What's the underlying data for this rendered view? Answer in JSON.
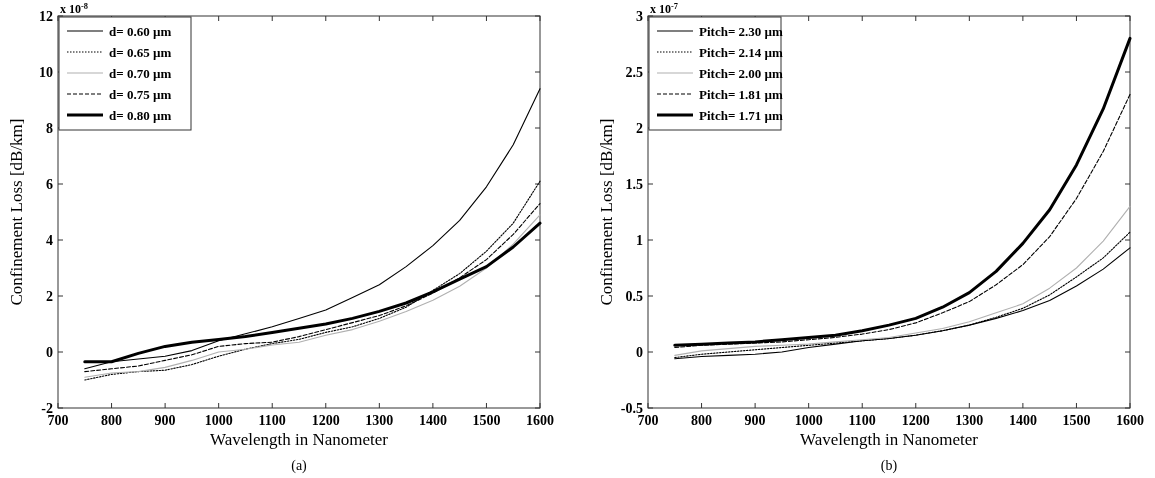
{
  "chart_data": [
    {
      "type": "line",
      "xlabel": "Wavelength in Nanometer",
      "ylabel": "Confinement Loss [dB/km]",
      "annotations": [
        "x 10$^{-8}$",
        "(a)"
      ],
      "x": [
        750,
        800,
        850,
        900,
        950,
        1000,
        1050,
        1100,
        1150,
        1200,
        1250,
        1300,
        1350,
        1400,
        1450,
        1500,
        1550,
        1600
      ],
      "xlim": [
        700,
        1600
      ],
      "xticks": [
        700,
        800,
        900,
        1000,
        1100,
        1200,
        1300,
        1400,
        1500,
        1600
      ],
      "ylim": [
        -2,
        12
      ],
      "yticks": [
        -2,
        0,
        2,
        4,
        6,
        8,
        10,
        12
      ],
      "grid": false,
      "legend": "top left",
      "series": [
        {
          "name": "d= 0.60 µm",
          "color": "#000000",
          "line_style": "solid",
          "values": [
            -0.6,
            -0.35,
            -0.25,
            -0.15,
            0.05,
            0.4,
            0.65,
            0.9,
            1.2,
            1.5,
            1.95,
            2.4,
            3.05,
            3.8,
            4.7,
            5.9,
            7.4,
            9.4
          ]
        },
        {
          "name": "d= 0.65 µm",
          "color": "#000000",
          "line_style": "dotted",
          "values": [
            -1.0,
            -0.8,
            -0.7,
            -0.65,
            -0.45,
            -0.15,
            0.1,
            0.3,
            0.45,
            0.7,
            0.9,
            1.2,
            1.6,
            2.2,
            2.8,
            3.6,
            4.6,
            6.1
          ]
        },
        {
          "name": "d= 0.70 µm",
          "color": "#b0b0b0",
          "line_style": "solid",
          "values": [
            -0.9,
            -0.75,
            -0.7,
            -0.55,
            -0.3,
            0.0,
            0.1,
            0.25,
            0.35,
            0.6,
            0.8,
            1.1,
            1.45,
            1.85,
            2.35,
            3.0,
            3.85,
            4.9
          ]
        },
        {
          "name": "d= 0.75 µm",
          "color": "#000000",
          "line_style": "dashed",
          "values": [
            -0.7,
            -0.6,
            -0.5,
            -0.3,
            -0.1,
            0.2,
            0.3,
            0.35,
            0.55,
            0.8,
            1.05,
            1.3,
            1.65,
            2.1,
            2.65,
            3.3,
            4.2,
            5.3
          ]
        },
        {
          "name": "d= 0.80 µm",
          "color": "#000000",
          "line_style": "solid",
          "values": [
            -0.35,
            -0.35,
            -0.05,
            0.2,
            0.35,
            0.45,
            0.55,
            0.7,
            0.85,
            1.0,
            1.2,
            1.45,
            1.75,
            2.15,
            2.6,
            3.05,
            3.75,
            4.6
          ]
        }
      ]
    },
    {
      "type": "line",
      "xlabel": "Wavelength in Nanometer",
      "ylabel": "Confinement Loss [dB/km]",
      "annotations": [
        "x 10$^{-7}$",
        "(b)"
      ],
      "x": [
        750,
        800,
        850,
        900,
        950,
        1000,
        1050,
        1100,
        1150,
        1200,
        1250,
        1300,
        1350,
        1400,
        1450,
        1500,
        1550,
        1600
      ],
      "xlim": [
        700,
        1600
      ],
      "xticks": [
        700,
        800,
        900,
        1000,
        1100,
        1200,
        1300,
        1400,
        1500,
        1600
      ],
      "ylim": [
        -0.5,
        3
      ],
      "yticks": [
        -0.5,
        0,
        0.5,
        1,
        1.5,
        2,
        2.5,
        3
      ],
      "grid": false,
      "legend": "top left",
      "series": [
        {
          "name": "Pitch= 2.30 µm",
          "color": "#000000",
          "line_style": "solid",
          "values": [
            -0.06,
            -0.04,
            -0.03,
            -0.02,
            0.0,
            0.04,
            0.07,
            0.1,
            0.12,
            0.15,
            0.19,
            0.24,
            0.3,
            0.37,
            0.46,
            0.59,
            0.74,
            0.93
          ]
        },
        {
          "name": "Pitch= 2.14 µm",
          "color": "#000000",
          "line_style": "dotted",
          "values": [
            -0.05,
            -0.02,
            0.0,
            0.02,
            0.04,
            0.06,
            0.08,
            0.1,
            0.12,
            0.15,
            0.19,
            0.24,
            0.31,
            0.39,
            0.51,
            0.67,
            0.84,
            1.07
          ]
        },
        {
          "name": "Pitch= 2.00 µm",
          "color": "#b0b0b0",
          "line_style": "solid",
          "values": [
            -0.03,
            0.01,
            0.03,
            0.05,
            0.06,
            0.07,
            0.09,
            0.11,
            0.13,
            0.17,
            0.21,
            0.27,
            0.35,
            0.43,
            0.57,
            0.75,
            0.99,
            1.3
          ]
        },
        {
          "name": "Pitch= 1.81 µm",
          "color": "#000000",
          "line_style": "dashed",
          "values": [
            0.04,
            0.06,
            0.07,
            0.08,
            0.09,
            0.11,
            0.13,
            0.16,
            0.2,
            0.26,
            0.35,
            0.45,
            0.6,
            0.78,
            1.03,
            1.37,
            1.79,
            2.3
          ]
        },
        {
          "name": "Pitch= 1.71 µm",
          "color": "#000000",
          "line_style": "solid",
          "values": [
            0.06,
            0.07,
            0.08,
            0.09,
            0.11,
            0.13,
            0.15,
            0.19,
            0.24,
            0.3,
            0.4,
            0.53,
            0.72,
            0.97,
            1.27,
            1.67,
            2.17,
            2.8
          ]
        }
      ]
    }
  ]
}
